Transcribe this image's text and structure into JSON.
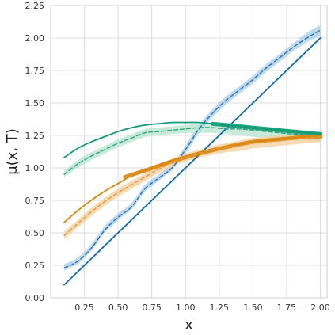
{
  "chart_data": {
    "type": "line",
    "title": "",
    "xlabel": "x",
    "ylabel": "μ(x, T)",
    "xlim": [
      0.0,
      2.05
    ],
    "ylim": [
      0.0,
      2.25
    ],
    "xticks": [
      0.25,
      0.5,
      0.75,
      1.0,
      1.25,
      1.5,
      1.75,
      2.0
    ],
    "xtick_labels": [
      "0.25",
      "0.50",
      "0.75",
      "1.00",
      "1.25",
      "1.50",
      "1.75",
      "2.00"
    ],
    "yticks": [
      0.0,
      0.25,
      0.5,
      0.75,
      1.0,
      1.25,
      1.5,
      1.75,
      2.0,
      2.25
    ],
    "ytick_labels": [
      "0.00",
      "0.25",
      "0.50",
      "0.75",
      "1.00",
      "1.25",
      "1.50",
      "1.75",
      "2.00",
      "2.25"
    ],
    "grid": true,
    "legend": "none",
    "colors": {
      "blue": "#1f77b4",
      "blue_dark": "#0f6aa6",
      "blue_band": "#a9cbe8",
      "green": "#129a74",
      "green_dashed": "#2fa57f",
      "green_band": "#b5e3cf",
      "orange": "#d9860f",
      "orange_dashed": "#e39a3c",
      "orange_band": "#f5cf9a"
    },
    "series": [
      {
        "style": "solid",
        "color": "blue_dark",
        "x": [
          0.1,
          2.0
        ],
        "y": [
          0.1,
          2.0
        ]
      },
      {
        "style": "dashed",
        "color": "blue",
        "band_color": "blue_band",
        "x": [
          0.1,
          0.2,
          0.3,
          0.4,
          0.5,
          0.6,
          0.7,
          0.8,
          0.9,
          1.0,
          1.1,
          1.2,
          1.3,
          1.4,
          1.5,
          1.6,
          1.7,
          1.8,
          1.9,
          2.0
        ],
        "y": [
          0.23,
          0.28,
          0.38,
          0.52,
          0.62,
          0.7,
          0.84,
          0.92,
          1.0,
          1.14,
          1.3,
          1.42,
          1.52,
          1.6,
          1.68,
          1.77,
          1.85,
          1.93,
          2.0,
          2.06
        ],
        "lower": [
          0.21,
          0.26,
          0.36,
          0.5,
          0.6,
          0.68,
          0.82,
          0.9,
          0.98,
          1.11,
          1.27,
          1.39,
          1.49,
          1.57,
          1.65,
          1.74,
          1.82,
          1.9,
          1.97,
          2.02
        ],
        "upper": [
          0.26,
          0.31,
          0.41,
          0.55,
          0.65,
          0.73,
          0.87,
          0.95,
          1.03,
          1.17,
          1.33,
          1.45,
          1.55,
          1.63,
          1.71,
          1.8,
          1.88,
          1.96,
          2.04,
          2.1
        ]
      },
      {
        "style": "solid",
        "color": "green",
        "x": [
          0.1,
          0.2,
          0.3,
          0.4,
          0.5,
          0.6,
          0.7,
          0.8,
          0.9,
          1.0,
          1.1,
          1.2,
          1.3,
          1.4,
          1.5,
          1.6,
          1.7,
          1.8,
          1.9,
          2.0
        ],
        "y": [
          1.08,
          1.15,
          1.2,
          1.24,
          1.28,
          1.31,
          1.33,
          1.34,
          1.35,
          1.35,
          1.35,
          1.34,
          1.33,
          1.32,
          1.31,
          1.3,
          1.29,
          1.28,
          1.27,
          1.26
        ]
      },
      {
        "style": "thick",
        "color": "green",
        "x": [
          1.2,
          1.4,
          1.6,
          1.8,
          2.0
        ],
        "y": [
          1.34,
          1.32,
          1.3,
          1.28,
          1.26
        ]
      },
      {
        "style": "dashed",
        "color": "green_dashed",
        "band_color": "green_band",
        "x": [
          0.1,
          0.2,
          0.3,
          0.4,
          0.5,
          0.6,
          0.7,
          0.8,
          0.9,
          1.0,
          1.1,
          1.2,
          1.3,
          1.4,
          1.5,
          1.6,
          1.7,
          1.8,
          1.9,
          2.0
        ],
        "y": [
          0.95,
          1.03,
          1.09,
          1.14,
          1.19,
          1.23,
          1.27,
          1.28,
          1.29,
          1.3,
          1.31,
          1.31,
          1.3,
          1.3,
          1.29,
          1.28,
          1.27,
          1.26,
          1.26,
          1.25
        ],
        "lower": [
          0.93,
          1.0,
          1.06,
          1.11,
          1.16,
          1.2,
          1.24,
          1.25,
          1.26,
          1.27,
          1.27,
          1.27,
          1.26,
          1.25,
          1.24,
          1.23,
          1.22,
          1.21,
          1.21,
          1.2
        ],
        "upper": [
          0.98,
          1.06,
          1.12,
          1.17,
          1.22,
          1.26,
          1.3,
          1.31,
          1.32,
          1.33,
          1.34,
          1.34,
          1.34,
          1.33,
          1.32,
          1.31,
          1.3,
          1.29,
          1.29,
          1.28
        ]
      },
      {
        "style": "solid",
        "color": "orange",
        "x": [
          0.1,
          0.2,
          0.3,
          0.4,
          0.5,
          0.6,
          0.7,
          0.8,
          0.9,
          1.0,
          1.1,
          1.2,
          1.3,
          1.4,
          1.5,
          1.6,
          1.7,
          1.8,
          1.9,
          2.0
        ],
        "y": [
          0.58,
          0.67,
          0.75,
          0.82,
          0.88,
          0.94,
          0.98,
          1.02,
          1.06,
          1.09,
          1.12,
          1.14,
          1.16,
          1.18,
          1.2,
          1.21,
          1.22,
          1.23,
          1.24,
          1.24
        ]
      },
      {
        "style": "thick",
        "color": "orange",
        "x": [
          0.55,
          0.7,
          0.9,
          1.1,
          1.3,
          1.5,
          1.7,
          1.9,
          2.0
        ],
        "y": [
          0.93,
          0.98,
          1.05,
          1.11,
          1.16,
          1.2,
          1.22,
          1.24,
          1.24
        ]
      },
      {
        "style": "dashed",
        "color": "orange_dashed",
        "band_color": "orange_band",
        "x": [
          0.1,
          0.2,
          0.3,
          0.4,
          0.5,
          0.6,
          0.7,
          0.8,
          0.9,
          1.0,
          1.1,
          1.2,
          1.3,
          1.4,
          1.5,
          1.6,
          1.7,
          1.8,
          1.9,
          2.0
        ],
        "y": [
          0.48,
          0.57,
          0.66,
          0.74,
          0.81,
          0.87,
          0.93,
          0.99,
          1.04,
          1.08,
          1.11,
          1.14,
          1.16,
          1.17,
          1.19,
          1.2,
          1.21,
          1.22,
          1.23,
          1.24
        ],
        "lower": [
          0.45,
          0.54,
          0.63,
          0.71,
          0.78,
          0.84,
          0.9,
          0.96,
          1.01,
          1.05,
          1.08,
          1.1,
          1.12,
          1.13,
          1.15,
          1.16,
          1.17,
          1.18,
          1.19,
          1.2
        ],
        "upper": [
          0.51,
          0.6,
          0.69,
          0.77,
          0.84,
          0.9,
          0.96,
          1.02,
          1.07,
          1.11,
          1.14,
          1.17,
          1.19,
          1.21,
          1.23,
          1.24,
          1.25,
          1.26,
          1.27,
          1.28
        ]
      }
    ]
  }
}
